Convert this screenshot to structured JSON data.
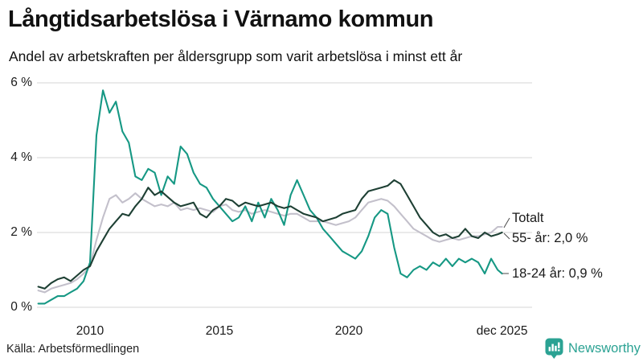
{
  "header": {
    "title": "Långtidsarbetslösa i Värnamo kommun",
    "subtitle": "Andel av arbetskraften per åldersgrupp som varit arbetslösa i minst ett år"
  },
  "footer": {
    "source": "Källa: Arbetsförmedlingen",
    "brand": "Newsworthy",
    "brand_color": "#2ba293"
  },
  "colors": {
    "grid": "#dedede",
    "leader_line": "#4a4a4a",
    "text": "#1a1a1a"
  },
  "chart_data": {
    "type": "line",
    "title": "Långtidsarbetslösa i Värnamo kommun",
    "subtitle": "Andel av arbetskraften per åldersgrupp som varit arbetslösa i minst ett år",
    "unit": "%",
    "ylim": [
      0,
      6
    ],
    "grid": "horizontal",
    "legend_position": "right-annotations",
    "yticks": [
      {
        "value": 0,
        "label": "0 %"
      },
      {
        "value": 2,
        "label": "2 %"
      },
      {
        "value": 4,
        "label": "4 %"
      },
      {
        "value": 6,
        "label": "6 %"
      }
    ],
    "xticks": [
      {
        "x": 2010,
        "label": "2010"
      },
      {
        "x": 2015,
        "label": "2015"
      },
      {
        "x": 2020,
        "label": "2020"
      },
      {
        "x": 2025.92,
        "label": "dec 2025"
      }
    ],
    "x": [
      2008,
      2008.25,
      2008.5,
      2008.75,
      2009,
      2009.25,
      2009.5,
      2009.75,
      2010,
      2010.25,
      2010.5,
      2010.75,
      2011,
      2011.25,
      2011.5,
      2011.75,
      2012,
      2012.25,
      2012.5,
      2012.75,
      2013,
      2013.25,
      2013.5,
      2013.75,
      2014,
      2014.25,
      2014.5,
      2014.75,
      2015,
      2015.25,
      2015.5,
      2015.75,
      2016,
      2016.25,
      2016.5,
      2016.75,
      2017,
      2017.25,
      2017.5,
      2017.75,
      2018,
      2018.25,
      2018.5,
      2018.75,
      2019,
      2019.25,
      2019.5,
      2019.75,
      2020,
      2020.25,
      2020.5,
      2020.75,
      2021,
      2021.25,
      2021.5,
      2021.75,
      2022,
      2022.25,
      2022.5,
      2022.75,
      2023,
      2023.25,
      2023.5,
      2023.75,
      2024,
      2024.25,
      2024.5,
      2024.75,
      2025,
      2025.25,
      2025.5,
      2025.75,
      2025.92
    ],
    "series": [
      {
        "name": "Totalt",
        "annotation": "Totalt",
        "end_value": 2.15,
        "color": "#c3c0cb",
        "values": [
          0.45,
          0.4,
          0.5,
          0.55,
          0.6,
          0.65,
          0.75,
          0.9,
          1.1,
          1.8,
          2.4,
          2.9,
          3.0,
          2.8,
          2.9,
          3.05,
          2.9,
          2.8,
          2.7,
          2.75,
          2.7,
          2.8,
          2.6,
          2.65,
          2.6,
          2.65,
          2.6,
          2.55,
          2.7,
          2.75,
          2.6,
          2.55,
          2.6,
          2.5,
          2.55,
          2.6,
          2.55,
          2.5,
          2.45,
          2.5,
          2.5,
          2.4,
          2.3,
          2.3,
          2.3,
          2.25,
          2.2,
          2.25,
          2.3,
          2.4,
          2.6,
          2.8,
          2.85,
          2.9,
          2.85,
          2.7,
          2.5,
          2.3,
          2.1,
          2.0,
          1.9,
          1.8,
          1.75,
          1.8,
          1.85,
          1.8,
          1.85,
          1.9,
          1.9,
          1.95,
          2.0,
          2.15,
          2.15
        ]
      },
      {
        "name": "18-24 år",
        "annotation": "18-24 år: 0,9 %",
        "end_value": 0.9,
        "color": "#169884",
        "values": [
          0.1,
          0.1,
          0.2,
          0.3,
          0.3,
          0.4,
          0.5,
          0.7,
          1.2,
          4.6,
          5.8,
          5.2,
          5.5,
          4.7,
          4.4,
          3.5,
          3.4,
          3.7,
          3.6,
          3.0,
          3.5,
          3.3,
          4.3,
          4.1,
          3.6,
          3.3,
          3.2,
          2.9,
          2.7,
          2.5,
          2.3,
          2.4,
          2.7,
          2.3,
          2.8,
          2.4,
          2.9,
          2.6,
          2.2,
          3.0,
          3.4,
          3.0,
          2.6,
          2.4,
          2.1,
          1.9,
          1.7,
          1.5,
          1.4,
          1.3,
          1.5,
          1.9,
          2.4,
          2.6,
          2.5,
          1.6,
          0.9,
          0.8,
          1.0,
          1.1,
          1.0,
          1.2,
          1.1,
          1.3,
          1.1,
          1.3,
          1.2,
          1.3,
          1.2,
          0.9,
          1.3,
          1.0,
          0.9
        ]
      },
      {
        "name": "55- år",
        "annotation": "55- år: 2,0 %",
        "end_value": 2.0,
        "color": "#1e4034",
        "values": [
          0.55,
          0.5,
          0.65,
          0.75,
          0.8,
          0.7,
          0.85,
          1.0,
          1.1,
          1.5,
          1.8,
          2.1,
          2.3,
          2.5,
          2.45,
          2.7,
          2.9,
          3.2,
          3.0,
          3.1,
          2.95,
          2.8,
          2.7,
          2.75,
          2.8,
          2.5,
          2.4,
          2.6,
          2.7,
          2.9,
          2.85,
          2.7,
          2.8,
          2.75,
          2.7,
          2.75,
          2.8,
          2.7,
          2.65,
          2.7,
          2.6,
          2.5,
          2.45,
          2.4,
          2.3,
          2.35,
          2.4,
          2.5,
          2.55,
          2.6,
          2.9,
          3.1,
          3.15,
          3.2,
          3.25,
          3.4,
          3.3,
          3.0,
          2.7,
          2.4,
          2.2,
          2.0,
          1.9,
          1.95,
          1.85,
          1.9,
          2.1,
          1.9,
          1.85,
          2.0,
          1.9,
          1.95,
          2.0
        ]
      }
    ]
  }
}
